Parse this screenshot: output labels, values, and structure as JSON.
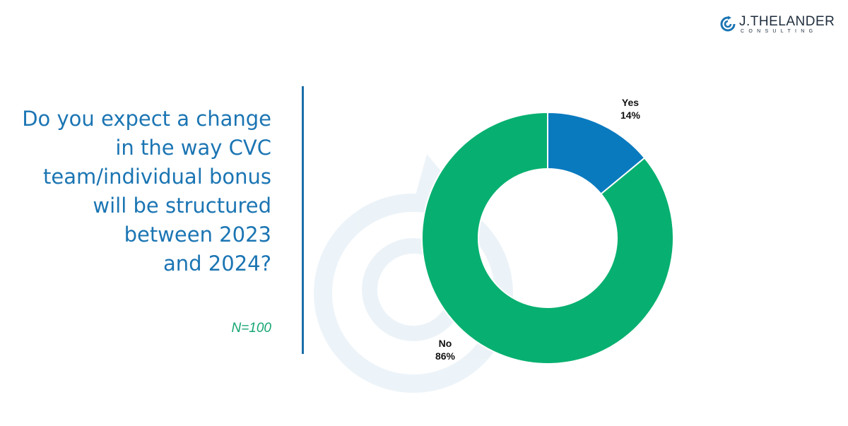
{
  "brand": {
    "name": "J.THELANDER",
    "subtitle": "CONSULTING",
    "logo_icon": "swirl-icon",
    "watermark_icon": "swirl-watermark-icon",
    "colors": {
      "primary_blue": "#1b75b3",
      "accent_green": "#17a673",
      "divider": "#1b6fa8"
    }
  },
  "question": {
    "lines": [
      "Do you expect a change",
      "in the way CVC",
      "team/individual bonus",
      "will be structured",
      "between 2023",
      "and 2024?"
    ],
    "sample_size": "N=100"
  },
  "chart_data": {
    "type": "pie",
    "variant": "donut",
    "title": "",
    "categories": [
      "Yes",
      "No"
    ],
    "values": [
      14,
      86
    ],
    "value_labels": [
      "14%",
      "86%"
    ],
    "colors": [
      "#0a7abf",
      "#07b070"
    ],
    "legend": "none",
    "start_angle": "12 o'clock",
    "direction": "clockwise"
  }
}
